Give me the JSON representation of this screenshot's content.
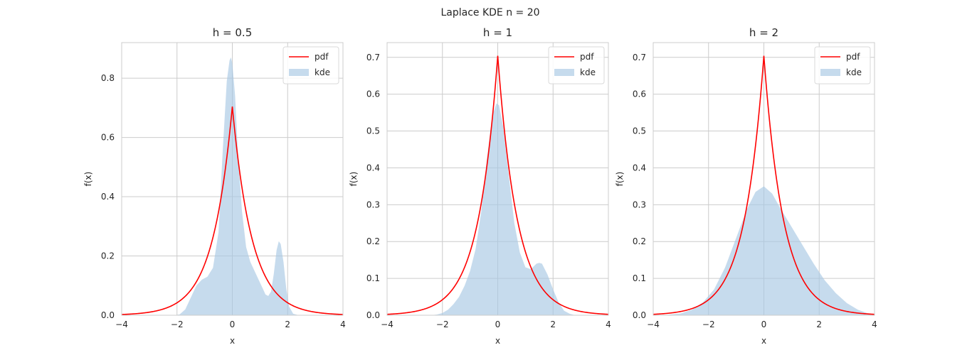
{
  "figure": {
    "suptitle": "Laplace KDE n = 20"
  },
  "style": {
    "pdf_color": "#ff0000",
    "kde_color": "#a7c7e3",
    "grid_color": "#cccccc",
    "spine_color": "#cccccc",
    "background": "#ffffff"
  },
  "chart_data": [
    {
      "type": "area",
      "title": "h = 0.5",
      "xlabel": "x",
      "ylabel": "f(x)",
      "xlim": [
        -4,
        4
      ],
      "ylim": [
        0,
        0.92
      ],
      "xticks": [
        -4,
        -2,
        0,
        2,
        4
      ],
      "xtick_labels": [
        "−4",
        "−2",
        "0",
        "2",
        "4"
      ],
      "yticks": [
        0.0,
        0.2,
        0.4,
        0.6,
        0.8
      ],
      "ytick_labels": [
        "0.0",
        "0.2",
        "0.4",
        "0.6",
        "0.8"
      ],
      "grid": true,
      "legend": "top-right",
      "series": [
        {
          "name": "pdf",
          "kind": "line",
          "laplace_scale": 0.71
        },
        {
          "name": "kde",
          "kind": "area",
          "x": [
            -4,
            -2.1,
            -1.9,
            -1.7,
            -1.5,
            -1.3,
            -1.1,
            -0.9,
            -0.7,
            -0.5,
            -0.35,
            -0.2,
            -0.1,
            -0.05,
            0.0,
            0.1,
            0.2,
            0.35,
            0.5,
            0.65,
            0.8,
            0.95,
            1.1,
            1.2,
            1.3,
            1.4,
            1.5,
            1.6,
            1.68,
            1.75,
            1.85,
            1.95,
            2.05,
            2.2,
            2.4,
            4
          ],
          "y": [
            0,
            0,
            0.003,
            0.02,
            0.06,
            0.1,
            0.12,
            0.13,
            0.16,
            0.28,
            0.55,
            0.79,
            0.86,
            0.87,
            0.85,
            0.74,
            0.55,
            0.35,
            0.23,
            0.18,
            0.15,
            0.12,
            0.09,
            0.07,
            0.065,
            0.08,
            0.14,
            0.22,
            0.25,
            0.24,
            0.18,
            0.09,
            0.03,
            0.005,
            0,
            0
          ]
        }
      ]
    },
    {
      "type": "area",
      "title": "h = 1",
      "xlabel": "x",
      "ylabel": "f(x)",
      "xlim": [
        -4,
        4
      ],
      "ylim": [
        0,
        0.74
      ],
      "xticks": [
        -4,
        -2,
        0,
        2,
        4
      ],
      "xtick_labels": [
        "−4",
        "−2",
        "0",
        "2",
        "4"
      ],
      "yticks": [
        0.0,
        0.1,
        0.2,
        0.3,
        0.4,
        0.5,
        0.6,
        0.7
      ],
      "ytick_labels": [
        "0.0",
        "0.1",
        "0.2",
        "0.3",
        "0.4",
        "0.5",
        "0.6",
        "0.7"
      ],
      "grid": true,
      "legend": "top-right",
      "series": [
        {
          "name": "pdf",
          "kind": "line",
          "laplace_scale": 0.71
        },
        {
          "name": "kde",
          "kind": "area",
          "x": [
            -4,
            -2.4,
            -2.2,
            -2.0,
            -1.8,
            -1.6,
            -1.4,
            -1.2,
            -1.0,
            -0.8,
            -0.6,
            -0.4,
            -0.2,
            -0.05,
            0.05,
            0.2,
            0.4,
            0.6,
            0.8,
            1.0,
            1.2,
            1.4,
            1.5,
            1.6,
            1.8,
            2.0,
            2.2,
            2.4,
            2.6,
            2.8,
            4
          ],
          "y": [
            0,
            0,
            0.002,
            0.006,
            0.015,
            0.03,
            0.05,
            0.08,
            0.12,
            0.18,
            0.28,
            0.42,
            0.54,
            0.575,
            0.57,
            0.51,
            0.38,
            0.25,
            0.17,
            0.13,
            0.125,
            0.14,
            0.142,
            0.14,
            0.11,
            0.07,
            0.035,
            0.012,
            0.004,
            0,
            0
          ]
        }
      ]
    },
    {
      "type": "area",
      "title": "h = 2",
      "xlabel": "x",
      "ylabel": "f(x)",
      "xlim": [
        -4,
        4
      ],
      "ylim": [
        0,
        0.74
      ],
      "xticks": [
        -4,
        -2,
        0,
        2,
        4
      ],
      "xtick_labels": [
        "−4",
        "−2",
        "0",
        "2",
        "4"
      ],
      "yticks": [
        0.0,
        0.1,
        0.2,
        0.3,
        0.4,
        0.5,
        0.6,
        0.7
      ],
      "ytick_labels": [
        "0.0",
        "0.1",
        "0.2",
        "0.3",
        "0.4",
        "0.5",
        "0.6",
        "0.7"
      ],
      "grid": true,
      "legend": "top-right",
      "series": [
        {
          "name": "pdf",
          "kind": "line",
          "laplace_scale": 0.71
        },
        {
          "name": "kde",
          "kind": "area",
          "x": [
            -4,
            -3.5,
            -3.0,
            -2.6,
            -2.2,
            -1.8,
            -1.4,
            -1.0,
            -0.6,
            -0.3,
            0.0,
            0.3,
            0.6,
            1.0,
            1.4,
            1.8,
            2.2,
            2.6,
            3.0,
            3.4,
            3.8,
            4
          ],
          "y": [
            0,
            0.001,
            0.005,
            0.015,
            0.035,
            0.07,
            0.13,
            0.21,
            0.29,
            0.335,
            0.35,
            0.33,
            0.29,
            0.24,
            0.19,
            0.14,
            0.095,
            0.06,
            0.033,
            0.015,
            0.004,
            0.002
          ]
        }
      ]
    }
  ]
}
